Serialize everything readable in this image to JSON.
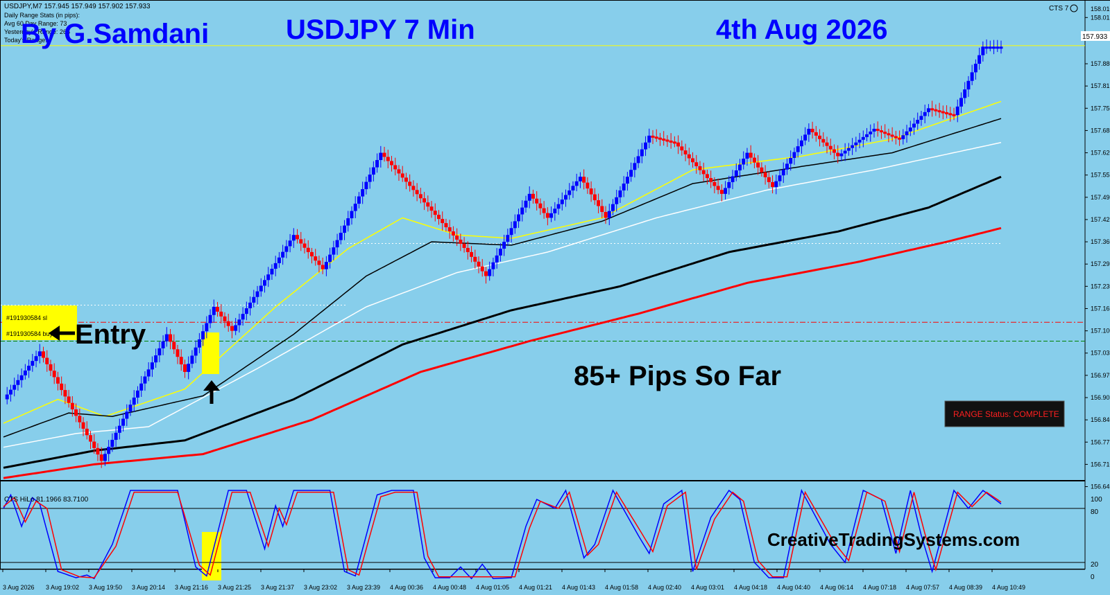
{
  "header": {
    "symbol_line": "USDJPY,M7  157.945 157.949 157.902 157.933",
    "stats_lines": [
      "Daily Range Stats (in pips):",
      "Avg 60 Day Range: 73",
      "Yesterday's Range: 266",
      "Today's Range:"
    ],
    "indicator_tag": "CTS 7"
  },
  "overlay": {
    "author": "By G.Samdani",
    "title": "USDJPY 7 Min",
    "date": "4th Aug 2026",
    "pips": "85+ Pips So Far",
    "entry": "Entry",
    "website": "CreativeTradingSystems.com",
    "order_sl": "#191930584 sl",
    "order_buy": "#191930584 buy",
    "range_status": "RANGE Status: COMPLETE",
    "current_price": "157.933"
  },
  "colors": {
    "background": "#87CEEB",
    "bull": "#0000FF",
    "bear": "#FF0000",
    "title_text": "#0000FF",
    "highlight": "#FFFF00"
  },
  "chart_data": [
    {
      "type": "line",
      "title": "USDJPY,M7",
      "x_ticks": [
        "3 Aug 2026",
        "3 Aug 19:02",
        "3 Aug 19:50",
        "3 Aug 20:14",
        "3 Aug 21:16",
        "3 Aug 21:25",
        "3 Aug 21:37",
        "3 Aug 23:02",
        "3 Aug 23:39",
        "4 Aug 00:36",
        "4 Aug 00:48",
        "4 Aug 01:05",
        "4 Aug 01:21",
        "4 Aug 01:43",
        "4 Aug 01:58",
        "4 Aug 02:40",
        "4 Aug 03:01",
        "4 Aug 04:18",
        "4 Aug 04:40",
        "4 Aug 06:14",
        "4 Aug 07:18",
        "4 Aug 07:57",
        "4 Aug 08:39",
        "4 Aug 10:49"
      ],
      "y_ticks": [
        158.015,
        157.88,
        157.815,
        157.75,
        157.685,
        157.62,
        157.555,
        157.49,
        157.425,
        157.36,
        157.295,
        157.23,
        157.165,
        157.1,
        157.035,
        156.97,
        156.905,
        156.84,
        156.775,
        156.71,
        156.645
      ],
      "y_top_label": "158.010",
      "ylim": [
        156.64,
        158.05
      ],
      "grid": false,
      "price_pivots": [
        [
          0,
          156.9
        ],
        [
          10,
          157.04
        ],
        [
          27,
          156.72
        ],
        [
          45,
          157.09
        ],
        [
          50,
          156.98
        ],
        [
          58,
          157.17
        ],
        [
          63,
          157.1
        ],
        [
          80,
          157.38
        ],
        [
          88,
          157.28
        ],
        [
          104,
          157.62
        ],
        [
          128,
          157.33
        ],
        [
          133,
          157.26
        ],
        [
          145,
          157.5
        ],
        [
          150,
          157.43
        ],
        [
          159,
          157.55
        ],
        [
          166,
          157.43
        ],
        [
          178,
          157.67
        ],
        [
          185,
          157.65
        ],
        [
          198,
          157.5
        ],
        [
          205,
          157.62
        ],
        [
          212,
          157.52
        ],
        [
          222,
          157.69
        ],
        [
          230,
          157.61
        ],
        [
          240,
          157.69
        ],
        [
          247,
          157.66
        ],
        [
          255,
          157.75
        ],
        [
          262,
          157.73
        ],
        [
          270,
          157.93
        ]
      ],
      "ma_series": [
        {
          "color": "#FFFF00",
          "width": 1.5,
          "pivots": [
            [
              0,
              156.83
            ],
            [
              15,
              156.9
            ],
            [
              28,
              156.85
            ],
            [
              50,
              156.93
            ],
            [
              75,
              157.17
            ],
            [
              95,
              157.34
            ],
            [
              110,
              157.43
            ],
            [
              125,
              157.38
            ],
            [
              140,
              157.37
            ],
            [
              165,
              157.43
            ],
            [
              190,
              157.57
            ],
            [
              220,
              157.61
            ],
            [
              245,
              157.66
            ],
            [
              275,
              157.77
            ]
          ]
        },
        {
          "color": "#000000",
          "width": 1.5,
          "pivots": [
            [
              0,
              156.79
            ],
            [
              18,
              156.86
            ],
            [
              30,
              156.85
            ],
            [
              55,
              156.91
            ],
            [
              80,
              157.09
            ],
            [
              100,
              157.26
            ],
            [
              118,
              157.36
            ],
            [
              140,
              157.35
            ],
            [
              165,
              157.42
            ],
            [
              190,
              157.53
            ],
            [
              220,
              157.58
            ],
            [
              245,
              157.62
            ],
            [
              275,
              157.72
            ]
          ]
        },
        {
          "color": "#FFFFFF",
          "width": 1.5,
          "pivots": [
            [
              0,
              156.76
            ],
            [
              20,
              156.8
            ],
            [
              40,
              156.82
            ],
            [
              70,
              156.99
            ],
            [
              100,
              157.17
            ],
            [
              125,
              157.27
            ],
            [
              150,
              157.33
            ],
            [
              180,
              157.43
            ],
            [
              210,
              157.51
            ],
            [
              240,
              157.57
            ],
            [
              275,
              157.65
            ]
          ]
        },
        {
          "color": "#000000",
          "width": 3,
          "pivots": [
            [
              0,
              156.7
            ],
            [
              25,
              156.75
            ],
            [
              50,
              156.78
            ],
            [
              80,
              156.9
            ],
            [
              110,
              157.06
            ],
            [
              140,
              157.16
            ],
            [
              170,
              157.23
            ],
            [
              200,
              157.33
            ],
            [
              230,
              157.39
            ],
            [
              255,
              157.46
            ],
            [
              275,
              157.55
            ]
          ]
        },
        {
          "color": "#FF0000",
          "width": 3,
          "pivots": [
            [
              0,
              156.67
            ],
            [
              25,
              156.71
            ],
            [
              55,
              156.74
            ],
            [
              85,
              156.84
            ],
            [
              115,
              156.98
            ],
            [
              145,
              157.07
            ],
            [
              175,
              157.15
            ],
            [
              205,
              157.24
            ],
            [
              235,
              157.3
            ],
            [
              260,
              157.36
            ],
            [
              275,
              157.4
            ]
          ]
        }
      ],
      "levels": [
        {
          "price": 157.933,
          "color": "#FFFF00",
          "style": "solid"
        },
        {
          "price": 157.125,
          "color": "#FF0000",
          "style": "dashdot"
        },
        {
          "price": 157.07,
          "color": "#008000",
          "style": "dashed"
        }
      ]
    },
    {
      "type": "line",
      "title": "CTS HiLo 81.1966 83.7100",
      "ylim": [
        0,
        100
      ],
      "y_ticks": [
        100,
        80,
        20,
        0
      ],
      "hlines": [
        80,
        20
      ],
      "series": [
        {
          "color": "#0000FF",
          "pivots": [
            [
              0,
              80
            ],
            [
              2,
              95
            ],
            [
              5,
              60
            ],
            [
              8,
              92
            ],
            [
              10,
              85
            ],
            [
              15,
              10
            ],
            [
              20,
              3
            ],
            [
              23,
              6
            ],
            [
              25,
              2
            ],
            [
              30,
              40
            ],
            [
              35,
              100
            ],
            [
              48,
              100
            ],
            [
              53,
              15
            ],
            [
              56,
              5
            ],
            [
              62,
              100
            ],
            [
              67,
              100
            ],
            [
              72,
              35
            ],
            [
              75,
              83
            ],
            [
              77,
              60
            ],
            [
              80,
              100
            ],
            [
              90,
              100
            ],
            [
              94,
              10
            ],
            [
              97,
              5
            ],
            [
              103,
              95
            ],
            [
              107,
              100
            ],
            [
              113,
              100
            ],
            [
              116,
              25
            ],
            [
              119,
              3
            ],
            [
              123,
              3
            ],
            [
              126,
              15
            ],
            [
              129,
              2
            ],
            [
              132,
              18
            ],
            [
              135,
              2
            ],
            [
              140,
              3
            ],
            [
              144,
              60
            ],
            [
              147,
              90
            ],
            [
              152,
              80
            ],
            [
              155,
              100
            ],
            [
              160,
              25
            ],
            [
              163,
              40
            ],
            [
              168,
              100
            ],
            [
              175,
              50
            ],
            [
              178,
              30
            ],
            [
              182,
              85
            ],
            [
              187,
              100
            ],
            [
              190,
              10
            ],
            [
              195,
              70
            ],
            [
              200,
              100
            ],
            [
              203,
              90
            ],
            [
              207,
              20
            ],
            [
              211,
              3
            ],
            [
              215,
              3
            ],
            [
              220,
              100
            ],
            [
              228,
              40
            ],
            [
              232,
              20
            ],
            [
              237,
              100
            ],
            [
              242,
              90
            ],
            [
              246,
              30
            ],
            [
              250,
              100
            ],
            [
              253,
              50
            ],
            [
              256,
              10
            ],
            [
              262,
              100
            ],
            [
              266,
              80
            ],
            [
              270,
              100
            ],
            [
              275,
              85
            ]
          ]
        },
        {
          "color": "#FF0000",
          "pivots": [
            [
              0,
              82
            ],
            [
              3,
              92
            ],
            [
              6,
              65
            ],
            [
              9,
              88
            ],
            [
              12,
              80
            ],
            [
              16,
              12
            ],
            [
              21,
              4
            ],
            [
              25,
              3
            ],
            [
              31,
              38
            ],
            [
              36,
              98
            ],
            [
              48,
              98
            ],
            [
              54,
              17
            ],
            [
              57,
              6
            ],
            [
              63,
              98
            ],
            [
              68,
              98
            ],
            [
              73,
              38
            ],
            [
              76,
              80
            ],
            [
              78,
              62
            ],
            [
              81,
              98
            ],
            [
              91,
              98
            ],
            [
              95,
              12
            ],
            [
              98,
              6
            ],
            [
              104,
              93
            ],
            [
              108,
              98
            ],
            [
              114,
              98
            ],
            [
              117,
              27
            ],
            [
              120,
              4
            ],
            [
              130,
              4
            ],
            [
              136,
              4
            ],
            [
              141,
              4
            ],
            [
              145,
              58
            ],
            [
              148,
              88
            ],
            [
              153,
              80
            ],
            [
              156,
              98
            ],
            [
              161,
              28
            ],
            [
              164,
              40
            ],
            [
              169,
              98
            ],
            [
              176,
              52
            ],
            [
              179,
              32
            ],
            [
              183,
              83
            ],
            [
              188,
              98
            ],
            [
              191,
              12
            ],
            [
              196,
              68
            ],
            [
              201,
              98
            ],
            [
              204,
              88
            ],
            [
              208,
              22
            ],
            [
              212,
              4
            ],
            [
              216,
              4
            ],
            [
              221,
              98
            ],
            [
              229,
              42
            ],
            [
              233,
              22
            ],
            [
              238,
              98
            ],
            [
              243,
              88
            ],
            [
              247,
              32
            ],
            [
              251,
              98
            ],
            [
              254,
              52
            ],
            [
              257,
              12
            ],
            [
              263,
              98
            ],
            [
              267,
              82
            ],
            [
              271,
              98
            ],
            [
              275,
              87
            ]
          ]
        }
      ]
    }
  ]
}
